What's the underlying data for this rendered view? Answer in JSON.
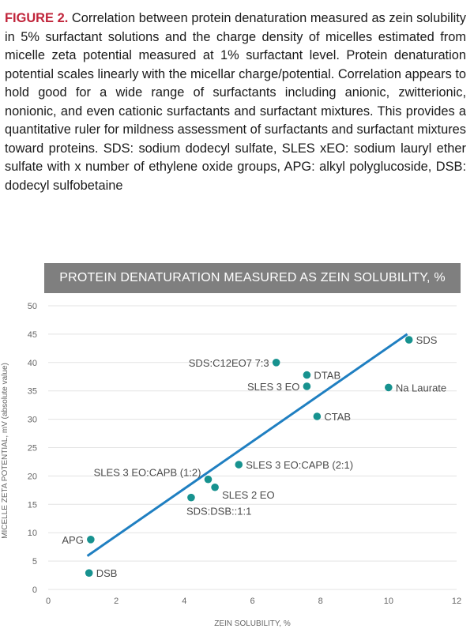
{
  "caption": {
    "label": "FIGURE 2.",
    "text": " Correlation between protein denaturation measured as zein solubility in 5% surfactant solutions and the charge density of micelles estimated from micelle zeta potential measured at 1% surfactant level. Protein denaturation potential scales linearly with the micellar charge/potential.  Correlation appears to hold good for a wide range of surfactants including anionic, zwitterionic, nonionic, and even cationic surfactants and surfactant mixtures. This provides a quantitative ruler for mildness assessment of surfactants and surfactant mixtures toward proteins. SDS: sodium dodecyl sulfate, SLES xEO: sodium lauryl ether sulfate with x number of ethylene oxide groups, APG: alkyl polyglucoside, DSB: dodecyl sulfobetaine"
  },
  "chart_data": {
    "type": "scatter",
    "title": "PROTEIN DENATURATION MEASURED AS ZEIN SOLUBILITY, %",
    "xlabel": "ZEIN SOLUBILITY, %",
    "ylabel": "MICELLE ZETA POTENTIAL, mV (absolute value)",
    "xlim": [
      0,
      12
    ],
    "ylim": [
      0,
      50
    ],
    "xticks": [
      0,
      2,
      4,
      6,
      8,
      10,
      12
    ],
    "yticks": [
      0,
      5,
      10,
      15,
      20,
      25,
      30,
      35,
      40,
      45,
      50
    ],
    "grid": "horizontal",
    "points": [
      {
        "label": "SDS",
        "x": 10.6,
        "y": 44.0,
        "side": "right"
      },
      {
        "label": "SDS:C12EO7 7:3",
        "x": 6.7,
        "y": 40.0,
        "side": "left"
      },
      {
        "label": "DTAB",
        "x": 7.6,
        "y": 37.8,
        "side": "right"
      },
      {
        "label": "SLES 3 EO",
        "x": 7.6,
        "y": 35.8,
        "side": "left"
      },
      {
        "label": "Na Laurate",
        "x": 10.0,
        "y": 35.6,
        "side": "right"
      },
      {
        "label": "CTAB",
        "x": 7.9,
        "y": 30.5,
        "side": "right"
      },
      {
        "label": "SLES 3 EO:CAPB (2:1)",
        "x": 5.6,
        "y": 22.0,
        "side": "right"
      },
      {
        "label": "SLES 3 EO:CAPB (1:2)",
        "x": 4.7,
        "y": 19.4,
        "side": "left-above"
      },
      {
        "label": "SLES 2 EO",
        "x": 4.9,
        "y": 18.0,
        "side": "right-below"
      },
      {
        "label": "SDS:DSB::1:1",
        "x": 4.2,
        "y": 16.2,
        "side": "below"
      },
      {
        "label": "APG",
        "x": 1.25,
        "y": 8.8,
        "side": "left"
      },
      {
        "label": "DSB",
        "x": 1.2,
        "y": 2.9,
        "side": "right"
      }
    ],
    "trendline": {
      "x": [
        1.15,
        10.55
      ],
      "y": [
        5.9,
        45.0
      ]
    },
    "colors": {
      "point": "#17928f",
      "trendline": "#1f7fc1",
      "grid": "#e3e3e3",
      "title_bg": "#7f7f7f"
    }
  }
}
